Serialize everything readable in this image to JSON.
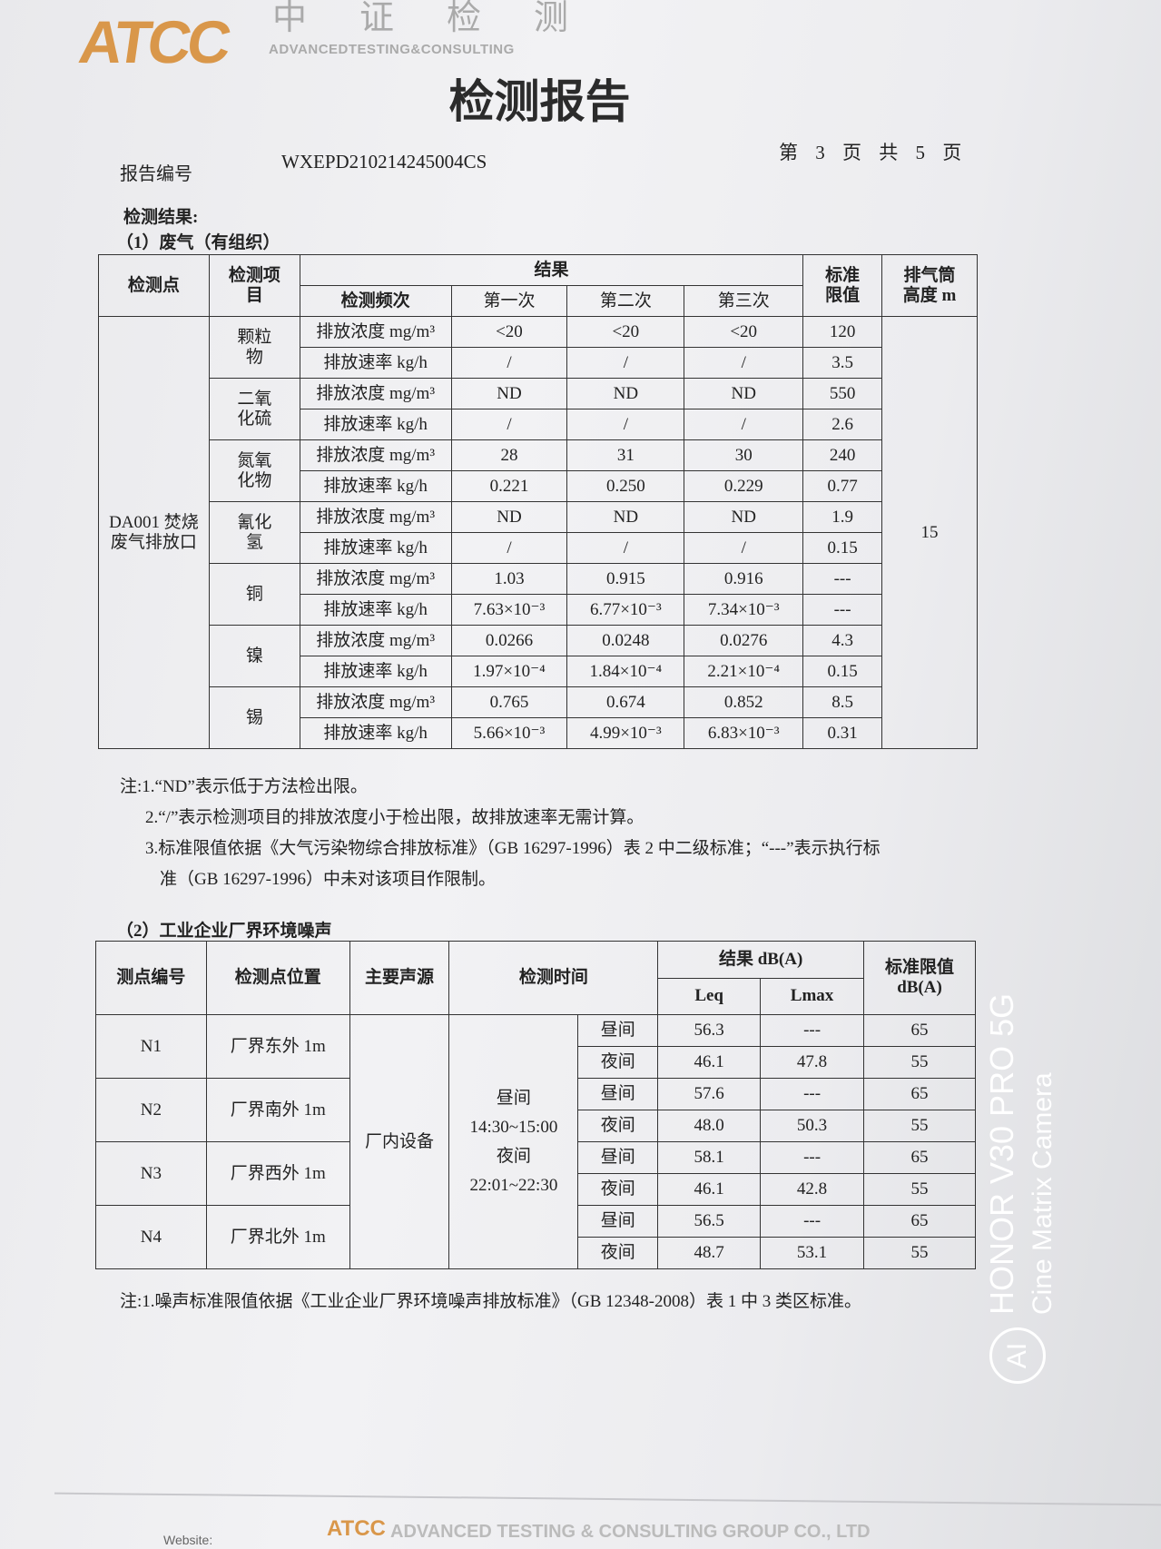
{
  "header": {
    "logo_text": "ATCC",
    "logo_cn": "中证检测",
    "logo_en": "ADVANCEDTESTING&CONSULTING",
    "title": "检测报告",
    "report_no_label": "报告编号",
    "report_no": "WXEPD210214245004CS",
    "page_info": "第 3 页 共 5 页"
  },
  "section_title": "检测结果:",
  "exhaust": {
    "subtitle": "（1）废气（有组织）",
    "headers": {
      "point": "检测点",
      "item": "检测项目",
      "result": "结果",
      "frequency": "检测频次",
      "first": "第一次",
      "second": "第二次",
      "third": "第三次",
      "limit": "标准限值",
      "height": "排气筒高度 m"
    },
    "point": "DA001 焚烧废气排放口",
    "stack_height": "15",
    "items": [
      {
        "name": "颗粒物",
        "rows": [
          {
            "param": "排放浓度 mg/m³",
            "v": [
              "<20",
              "<20",
              "<20"
            ],
            "limit": "120"
          },
          {
            "param": "排放速率 kg/h",
            "v": [
              "/",
              "/",
              "/"
            ],
            "limit": "3.5"
          }
        ]
      },
      {
        "name": "二氧化硫",
        "rows": [
          {
            "param": "排放浓度 mg/m³",
            "v": [
              "ND",
              "ND",
              "ND"
            ],
            "limit": "550"
          },
          {
            "param": "排放速率 kg/h",
            "v": [
              "/",
              "/",
              "/"
            ],
            "limit": "2.6"
          }
        ]
      },
      {
        "name": "氮氧化物",
        "rows": [
          {
            "param": "排放浓度 mg/m³",
            "v": [
              "28",
              "31",
              "30"
            ],
            "limit": "240"
          },
          {
            "param": "排放速率 kg/h",
            "v": [
              "0.221",
              "0.250",
              "0.229"
            ],
            "limit": "0.77"
          }
        ]
      },
      {
        "name": "氰化氢",
        "rows": [
          {
            "param": "排放浓度 mg/m³",
            "v": [
              "ND",
              "ND",
              "ND"
            ],
            "limit": "1.9"
          },
          {
            "param": "排放速率 kg/h",
            "v": [
              "/",
              "/",
              "/"
            ],
            "limit": "0.15"
          }
        ]
      },
      {
        "name": "铜",
        "rows": [
          {
            "param": "排放浓度 mg/m³",
            "v": [
              "1.03",
              "0.915",
              "0.916"
            ],
            "limit": "---"
          },
          {
            "param": "排放速率 kg/h",
            "v": [
              "7.63×10⁻³",
              "6.77×10⁻³",
              "7.34×10⁻³"
            ],
            "limit": "---"
          }
        ]
      },
      {
        "name": "镍",
        "rows": [
          {
            "param": "排放浓度 mg/m³",
            "v": [
              "0.0266",
              "0.0248",
              "0.0276"
            ],
            "limit": "4.3"
          },
          {
            "param": "排放速率 kg/h",
            "v": [
              "1.97×10⁻⁴",
              "1.84×10⁻⁴",
              "2.21×10⁻⁴"
            ],
            "limit": "0.15"
          }
        ]
      },
      {
        "name": "锡",
        "rows": [
          {
            "param": "排放浓度 mg/m³",
            "v": [
              "0.765",
              "0.674",
              "0.852"
            ],
            "limit": "8.5"
          },
          {
            "param": "排放速率 kg/h",
            "v": [
              "5.66×10⁻³",
              "4.99×10⁻³",
              "6.83×10⁻³"
            ],
            "limit": "0.31"
          }
        ]
      }
    ],
    "notes": [
      "注:1.“ND”表示低于方法检出限。",
      "2.“/”表示检测项目的排放浓度小于检出限，故排放速率无需计算。",
      "3.标准限值依据《大气污染物综合排放标准》（GB 16297-1996）表 2 中二级标准；“---”表示执行标",
      "准（GB 16297-1996）中未对该项目作限制。"
    ]
  },
  "noise": {
    "subtitle": "（2）工业企业厂界环境噪声",
    "headers": {
      "id": "测点编号",
      "location": "检测点位置",
      "source": "主要声源",
      "time": "检测时间",
      "result": "结果 dB(A)",
      "leq": "Leq",
      "lmax": "Lmax",
      "limit": "标准限值 dB(A)"
    },
    "source": "厂内设备",
    "time_text": [
      "昼间",
      "14:30~15:00",
      "夜间",
      "22:01~22:30"
    ],
    "points": [
      {
        "id": "N1",
        "location": "厂界东外 1m",
        "rows": [
          {
            "period": "昼间",
            "leq": "56.3",
            "lmax": "---",
            "limit": "65"
          },
          {
            "period": "夜间",
            "leq": "46.1",
            "lmax": "47.8",
            "limit": "55"
          }
        ]
      },
      {
        "id": "N2",
        "location": "厂界南外 1m",
        "rows": [
          {
            "period": "昼间",
            "leq": "57.6",
            "lmax": "---",
            "limit": "65"
          },
          {
            "period": "夜间",
            "leq": "48.0",
            "lmax": "50.3",
            "limit": "55"
          }
        ]
      },
      {
        "id": "N3",
        "location": "厂界西外 1m",
        "rows": [
          {
            "period": "昼间",
            "leq": "58.1",
            "lmax": "---",
            "limit": "65"
          },
          {
            "period": "夜间",
            "leq": "46.1",
            "lmax": "42.8",
            "limit": "55"
          }
        ]
      },
      {
        "id": "N4",
        "location": "厂界北外 1m",
        "rows": [
          {
            "period": "昼间",
            "leq": "56.5",
            "lmax": "---",
            "limit": "65"
          },
          {
            "period": "夜间",
            "leq": "48.7",
            "lmax": "53.1",
            "limit": "55"
          }
        ]
      }
    ],
    "note": "注:1.噪声标准限值依据《工业企业厂界环境噪声排放标准》（GB 12348-2008）表 1 中 3 类区标准。"
  },
  "footer": {
    "logo": "ATCC",
    "company": "ADVANCED TESTING & CONSULTING GROUP CO., LTD",
    "website": "Website:"
  },
  "camera_watermark": {
    "line1": "HONOR V30 PRO 5G",
    "line2": "Cine Matrix Camera",
    "badge": "AI"
  },
  "colors": {
    "brand": "#d9974a"
  }
}
